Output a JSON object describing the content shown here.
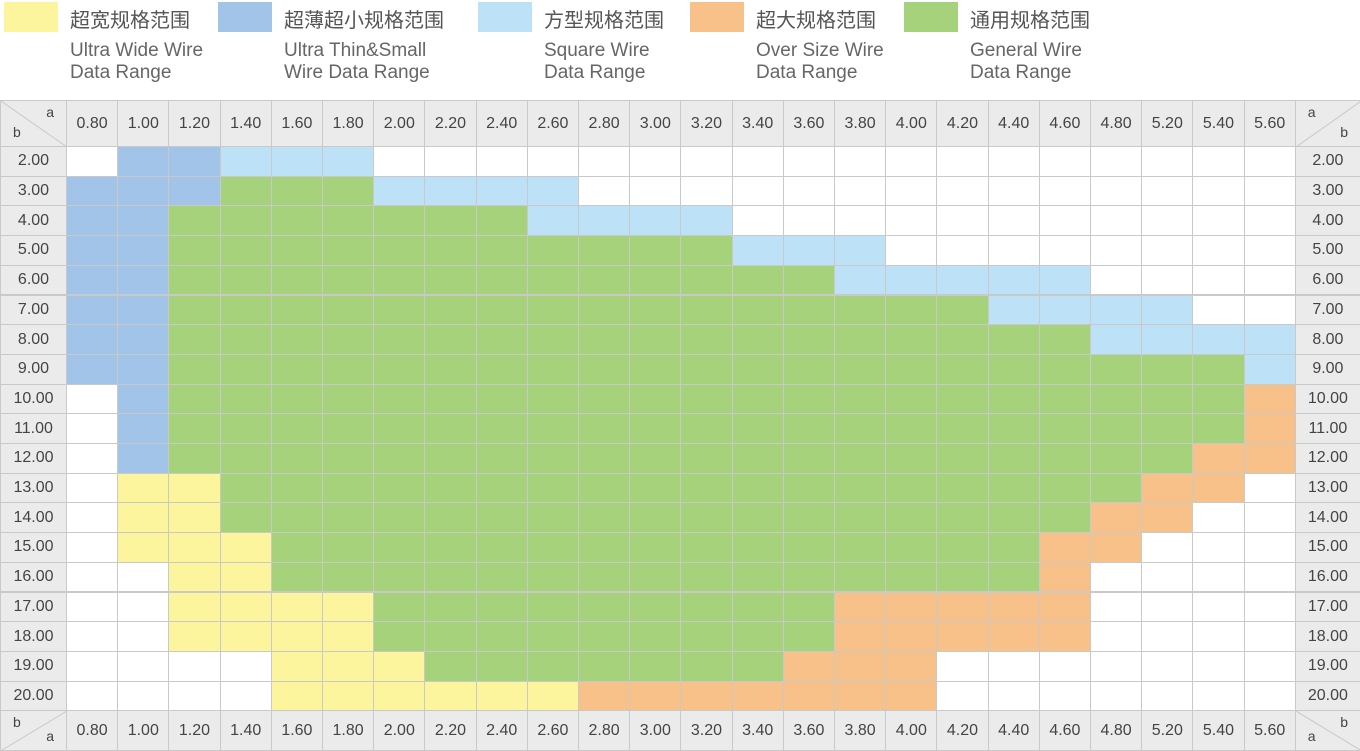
{
  "legend": [
    {
      "key": "W",
      "cn": "超宽规格范围",
      "en1": "Ultra Wide Wire",
      "en2": "Data Range",
      "color": "#fcf59d"
    },
    {
      "key": "T",
      "cn": "超薄超小规格范围",
      "en1": "Ultra Thin&Small",
      "en2": "Wire Data Range",
      "color": "#a2c4e8"
    },
    {
      "key": "S",
      "cn": "方型规格范围",
      "en1": "Square Wire",
      "en2": "Data Range",
      "color": "#bde2f7"
    },
    {
      "key": "O",
      "cn": "超大规格范围",
      "en1": "Over Size Wire",
      "en2": "Data Range",
      "color": "#f8c18a"
    },
    {
      "key": "G",
      "cn": "通用规格范围",
      "en1": "General Wire",
      "en2": "Data Range",
      "color": "#a6d27c"
    }
  ],
  "corner": {
    "a_label": "a",
    "b_label": "b"
  },
  "chart_data": {
    "type": "heatmap",
    "x_axis_name": "a",
    "y_axis_name": "b",
    "columns": [
      "0.80",
      "1.00",
      "1.20",
      "1.40",
      "1.60",
      "1.80",
      "2.00",
      "2.20",
      "2.40",
      "2.60",
      "2.80",
      "3.00",
      "3.20",
      "3.40",
      "3.60",
      "3.80",
      "4.00",
      "4.20",
      "4.40",
      "4.60",
      "4.80",
      "5.20",
      "5.40",
      "5.60"
    ],
    "rows": [
      "2.00",
      "3.00",
      "4.00",
      "5.00",
      "6.00",
      "7.00",
      "8.00",
      "9.00",
      "10.00",
      "11.00",
      "12.00",
      "13.00",
      "14.00",
      "15.00",
      "16.00",
      "17.00",
      "18.00",
      "19.00",
      "20.00"
    ],
    "category_keys": {
      "W": "超宽规格范围",
      "T": "超薄超小规格范围",
      "S": "方型规格范围",
      "O": "超大规格范围",
      "G": "通用规格范围",
      ".": "none"
    },
    "cells": [
      ".TTSSS..................",
      "TTTGGGSSSS..............",
      "TTGGGGGGGSSSS...........",
      "TTGGGGGGGGGGGSSS........",
      "TTGGGGGGGGGGGGGSSSSS....",
      "TTGGGGGGGGGGGGGGGGSSSS..",
      "TTGGGGGGGGGGGGGGGGGGSSSS",
      "TTGGGGGGGGGGGGGGGGGGGGGS",
      ".TGGGGGGGGGGGGGGGGGGGGGO",
      ".TGGGGGGGGGGGGGGGGGGGGGO",
      ".TGGGGGGGGGGGGGGGGGGGGOO",
      ".WWGGGGGGGGGGGGGGGGGGOO.",
      ".WWGGGGGGGGGGGGGGGGGOO..",
      ".WWWGGGGGGGGGGGGGGGOO...",
      "..WWGGGGGGGGGGGGGGGO....",
      "..WWWWGGGGGGGGGOOOOO....",
      "..WWWWGGGGGGGGGOOOOO....",
      "....WWWGGGGGGGOOO.......",
      "....WWWWWWOOOOOOO......."
    ]
  }
}
